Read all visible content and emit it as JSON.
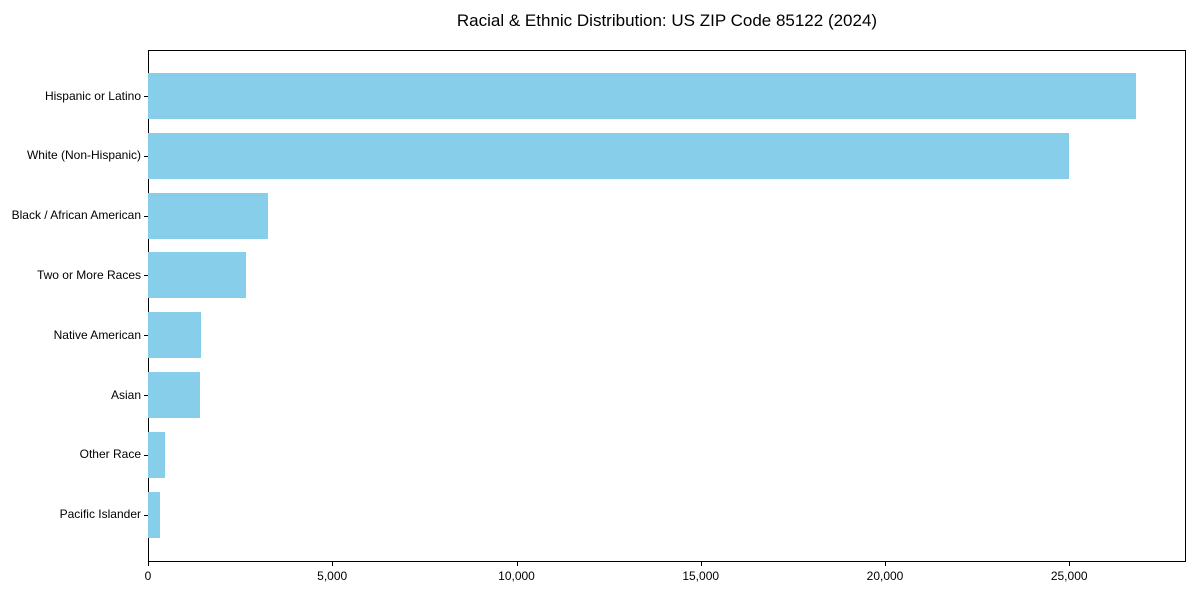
{
  "chart_data": {
    "type": "bar",
    "orientation": "horizontal",
    "title": "Racial & Ethnic Distribution: US ZIP Code 85122 (2024)",
    "categories": [
      "Hispanic or Latino",
      "White (Non-Hispanic)",
      "Black / African American",
      "Two or More Races",
      "Native American",
      "Asian",
      "Other Race",
      "Pacific Islander"
    ],
    "values": [
      26800,
      25000,
      3250,
      2650,
      1450,
      1400,
      450,
      325
    ],
    "x_ticks": [
      0,
      5000,
      10000,
      15000,
      20000,
      25000
    ],
    "x_tick_labels": [
      "0",
      "5,000",
      "10,000",
      "15,000",
      "20,000",
      "25,000"
    ],
    "xlim": [
      0,
      28170
    ],
    "xlabel": "",
    "ylabel": "",
    "bar_color": "#87CEEB",
    "axis_color": "#000000",
    "background_color": "#FFFFFF",
    "grid": false,
    "legend": null
  }
}
